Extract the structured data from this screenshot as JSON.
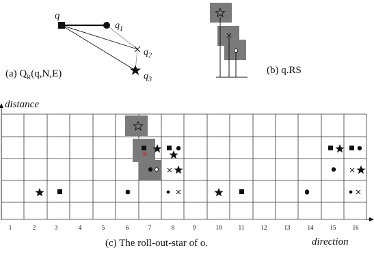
{
  "panel_a": {
    "caption_prefix": "(a) Q",
    "caption_sub": "R",
    "caption_args": "(q,N,E)",
    "node_q": "q",
    "node_q1_base": "q",
    "node_q1_sub": "1",
    "node_q2_base": "q",
    "node_q2_sub": "2",
    "node_q3_base": "q",
    "node_q3_sub": "3"
  },
  "panel_b": {
    "caption": "(b) q.RS"
  },
  "panel_c": {
    "y_axis_label": "distance",
    "x_axis_label": "direction",
    "caption": "(c) The roll-out-star of o.",
    "directions": [
      "1",
      "2",
      "3",
      "4",
      "5",
      "6",
      "7",
      "8",
      "9",
      "10",
      "11",
      "12",
      "13",
      "14",
      "15",
      "16"
    ]
  },
  "colors": {
    "line": "#111111",
    "shade": "#7a7a7a",
    "cross_red": "#cc2222"
  }
}
